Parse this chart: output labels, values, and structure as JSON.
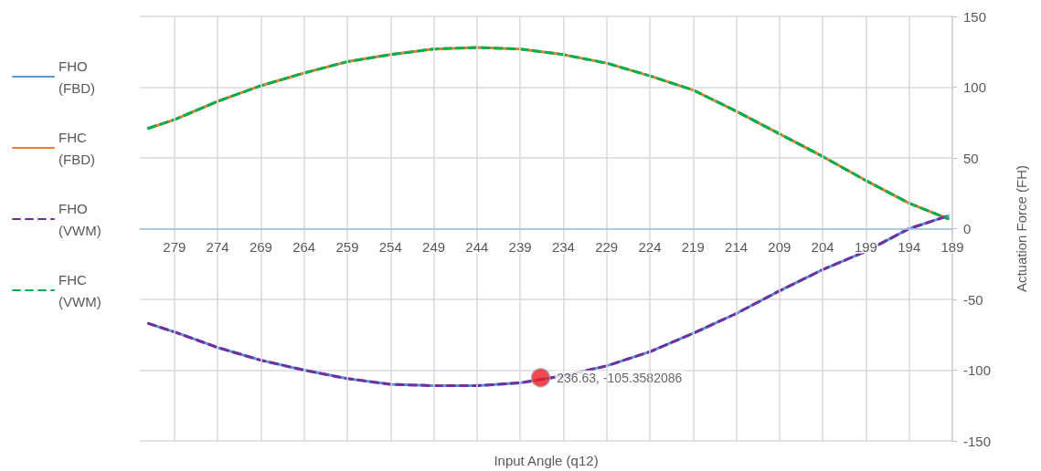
{
  "chart_data": {
    "type": "line",
    "xlabel": "Input Angle (q12)",
    "ylabel": "Actuation Force (FH)",
    "x": [
      282,
      279,
      274,
      269,
      264,
      259,
      254,
      249,
      244,
      239,
      234,
      229,
      224,
      219,
      214,
      209,
      204,
      199,
      194,
      189.5
    ],
    "series": [
      {
        "name": "FHO (FBD)",
        "color": "#5b9bd5",
        "line_style": "solid",
        "values": [
          -67,
          -73,
          -84,
          -93,
          -100,
          -106,
          -110,
          -111,
          -111,
          -109,
          -104,
          -97,
          -87,
          -74,
          -60,
          -44,
          -29,
          -16,
          0,
          9
        ]
      },
      {
        "name": "FHC (FBD)",
        "color": "#ed7d31",
        "line_style": "solid",
        "values": [
          71,
          77,
          90,
          101,
          110,
          118,
          123,
          127,
          128,
          127,
          123,
          117,
          108,
          98,
          83,
          67,
          51,
          34,
          18,
          7
        ]
      },
      {
        "name": "FHO (VWM)",
        "color": "#7030a0",
        "line_style": "dashed",
        "values": [
          -67,
          -73,
          -84,
          -93,
          -100,
          -106,
          -110,
          -111,
          -111,
          -109,
          -104,
          -97,
          -87,
          -74,
          -60,
          -44,
          -29,
          -16,
          0,
          9
        ]
      },
      {
        "name": "FHC (VWM)",
        "color": "#00b050",
        "line_style": "dashed",
        "values": [
          71,
          77,
          90,
          101,
          110,
          118,
          123,
          127,
          128,
          127,
          123,
          117,
          108,
          98,
          83,
          67,
          51,
          34,
          18,
          7
        ]
      }
    ],
    "annotations": [
      {
        "text": "236.63, -105.3582086",
        "x": 236.63,
        "y": -105.3582086
      }
    ],
    "xlim": [
      283,
      189
    ],
    "xticks": [
      279,
      274,
      269,
      264,
      259,
      254,
      249,
      244,
      239,
      234,
      229,
      224,
      219,
      214,
      209,
      204,
      199,
      194,
      189
    ],
    "ylim": [
      -150,
      150
    ],
    "yticks": [
      -150,
      -100,
      -50,
      0,
      50,
      100,
      150
    ],
    "grid": true,
    "legend": "left",
    "marker": "none"
  }
}
